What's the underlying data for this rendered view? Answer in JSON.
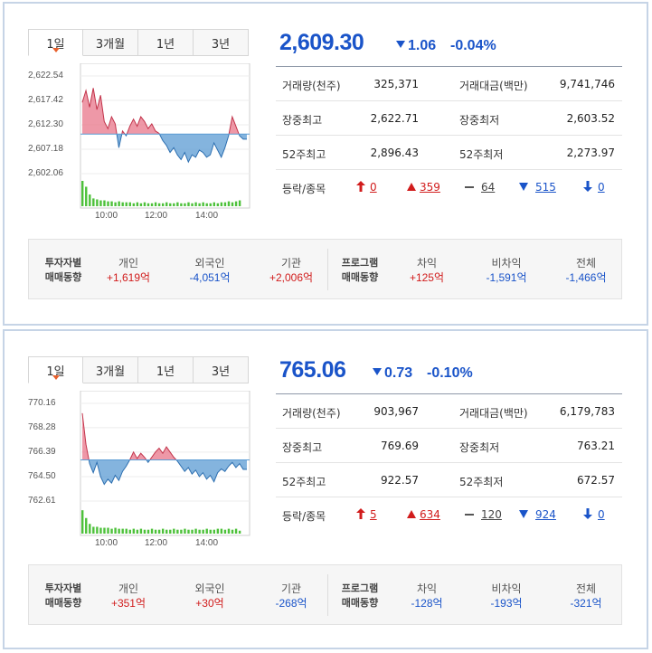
{
  "panels": [
    {
      "tabs": [
        "1일",
        "3개월",
        "1년",
        "3년"
      ],
      "price": "2,609.30",
      "change_value": "1.06",
      "change_pct": "-0.04%",
      "stats": {
        "volume_label": "거래량(천주)",
        "volume": "325,371",
        "amount_label": "거래대금(백만)",
        "amount": "9,741,746",
        "high_label": "장중최고",
        "high": "2,622.71",
        "low_label": "장중최저",
        "low": "2,603.52",
        "w52high_label": "52주최고",
        "w52high": "2,896.43",
        "w52low_label": "52주최저",
        "w52low": "2,273.97"
      },
      "breadth": {
        "label": "등락/종목",
        "upper": "0",
        "up": "359",
        "flat": "64",
        "down": "515",
        "lower": "0"
      },
      "investors": {
        "caption1": "투자자별",
        "caption2": "매매동향",
        "individual_label": "개인",
        "individual": "+1,619억",
        "foreign_label": "외국인",
        "foreign": "-4,051억",
        "institution_label": "기관",
        "institution": "+2,006억"
      },
      "program": {
        "caption1": "프로그램",
        "caption2": "매매동향",
        "arb_label": "차익",
        "arb": "+125억",
        "nonarb_label": "비차익",
        "nonarb": "-1,591억",
        "total_label": "전체",
        "total": "-1,466억"
      },
      "chart_data": {
        "type": "area",
        "yticks": [
          "2,622.54",
          "2,617.42",
          "2,612.30",
          "2,607.18",
          "2,602.06"
        ],
        "ytick_values": [
          2622.54,
          2617.42,
          2612.3,
          2607.18,
          2602.06
        ],
        "xticks": [
          "10:00",
          "12:00",
          "14:00"
        ],
        "baseline": 2610.36,
        "ylim": [
          2602.06,
          2622.54
        ],
        "values": [
          2617.0,
          2619.5,
          2616.0,
          2620.0,
          2615.5,
          2618.5,
          2613.0,
          2611.5,
          2614.0,
          2612.5,
          2607.5,
          2611.0,
          2610.0,
          2612.0,
          2613.5,
          2612.0,
          2614.0,
          2613.0,
          2611.5,
          2612.5,
          2611.0,
          2610.5,
          2609.0,
          2608.0,
          2606.5,
          2607.5,
          2606.0,
          2605.0,
          2606.5,
          2604.5,
          2606.0,
          2605.5,
          2607.0,
          2606.5,
          2605.5,
          2606.0,
          2608.5,
          2607.0,
          2605.5,
          2607.5,
          2610.0,
          2614.0,
          2612.0,
          2610.0,
          2609.3,
          2609.3
        ],
        "volumes": [
          26,
          20,
          12,
          8,
          7,
          6,
          6,
          5,
          5,
          4,
          5,
          4,
          4,
          4,
          3,
          4,
          3,
          4,
          3,
          3,
          4,
          3,
          3,
          4,
          3,
          3,
          4,
          3,
          3,
          4,
          3,
          4,
          3,
          4,
          3,
          3,
          4,
          3,
          4,
          4,
          5,
          4,
          5,
          6,
          0,
          0
        ],
        "up_color": "#e8758a",
        "down_color": "#5b9bd3"
      }
    },
    {
      "tabs": [
        "1일",
        "3개월",
        "1년",
        "3년"
      ],
      "price": "765.06",
      "change_value": "0.73",
      "change_pct": "-0.10%",
      "stats": {
        "volume_label": "거래량(천주)",
        "volume": "903,967",
        "amount_label": "거래대금(백만)",
        "amount": "6,179,783",
        "high_label": "장중최고",
        "high": "769.69",
        "low_label": "장중최저",
        "low": "763.21",
        "w52high_label": "52주최고",
        "w52high": "922.57",
        "w52low_label": "52주최저",
        "w52low": "672.57"
      },
      "breadth": {
        "label": "등락/종목",
        "upper": "5",
        "up": "634",
        "flat": "120",
        "down": "924",
        "lower": "0"
      },
      "investors": {
        "caption1": "투자자별",
        "caption2": "매매동향",
        "individual_label": "개인",
        "individual": "+351억",
        "foreign_label": "외국인",
        "foreign": "+30억",
        "institution_label": "기관",
        "institution": "-268억"
      },
      "program": {
        "caption1": "프로그램",
        "caption2": "매매동향",
        "arb_label": "차익",
        "arb": "-128억",
        "nonarb_label": "비차익",
        "nonarb": "-193억",
        "total_label": "전체",
        "total": "-321억"
      },
      "chart_data": {
        "type": "area",
        "yticks": [
          "770.16",
          "768.28",
          "766.39",
          "764.50",
          "762.61"
        ],
        "ytick_values": [
          770.16,
          768.28,
          766.39,
          764.5,
          762.61
        ],
        "xticks": [
          "10:00",
          "12:00",
          "14:00"
        ],
        "baseline": 765.79,
        "ylim": [
          762.61,
          770.16
        ],
        "values": [
          769.4,
          767.0,
          765.5,
          764.8,
          765.6,
          764.5,
          763.9,
          764.3,
          764.0,
          764.6,
          764.2,
          764.9,
          765.3,
          765.8,
          766.4,
          765.9,
          766.3,
          766.0,
          765.6,
          766.0,
          766.4,
          766.7,
          766.3,
          766.8,
          766.4,
          766.0,
          765.7,
          765.3,
          764.9,
          765.2,
          764.7,
          765.0,
          764.5,
          764.8,
          764.3,
          764.6,
          764.1,
          764.8,
          765.1,
          764.9,
          765.3,
          765.6,
          765.2,
          765.5,
          765.06,
          765.06
        ],
        "volumes": [
          24,
          16,
          10,
          7,
          7,
          6,
          6,
          6,
          5,
          6,
          5,
          5,
          5,
          4,
          5,
          4,
          5,
          4,
          4,
          5,
          4,
          4,
          5,
          4,
          4,
          5,
          4,
          4,
          5,
          4,
          4,
          5,
          4,
          4,
          5,
          4,
          4,
          5,
          5,
          4,
          5,
          4,
          5,
          3,
          0,
          0
        ],
        "up_color": "#e8758a",
        "down_color": "#5b9bd3"
      }
    }
  ]
}
